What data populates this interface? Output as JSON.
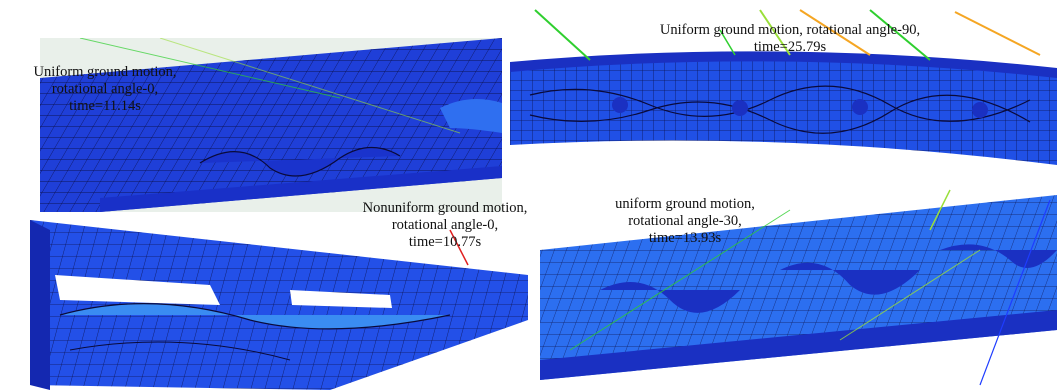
{
  "colors": {
    "mesh_dark": "#1a2fd4",
    "mesh_mid": "#2155f0",
    "mesh_light": "#3a8cf2",
    "mesh_cyan": "#2ec3f5",
    "edge": "#0a0a3a",
    "lines": [
      "#2fcf2f",
      "#9adf3a",
      "#f5a623",
      "#e02020",
      "#1e3cff"
    ]
  },
  "panels": [
    {
      "caption": [
        "Uniform ground motion,",
        "rotational angle-0,",
        "time=11.14s"
      ]
    },
    {
      "caption": [
        "Uniform ground motion, rotational angle-90,",
        "time=25.79s"
      ]
    },
    {
      "caption": [
        "Nonuniform ground motion,",
        "rotational angle-0,",
        "time=10.77s"
      ]
    },
    {
      "caption": [
        "uniform ground motion,",
        "rotational angle-30,",
        "time=13.93s"
      ]
    }
  ]
}
